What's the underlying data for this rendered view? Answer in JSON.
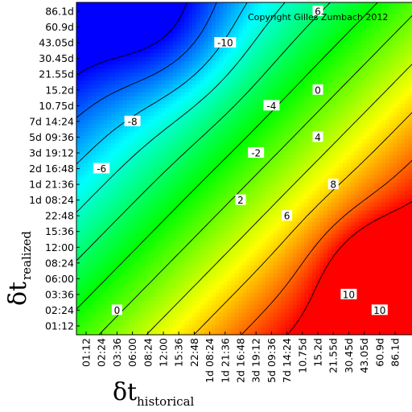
{
  "chart_data": {
    "type": "heatmap",
    "title": "",
    "copyright": "Copyright Gilles Zumbach 2012",
    "xlabel": {
      "symbol": "δt",
      "subscript": "historical"
    },
    "ylabel": {
      "symbol": "δt",
      "subscript": "realized"
    },
    "x_categories": [
      "01:12",
      "02:24",
      "03:36",
      "06:00",
      "08:24",
      "12:00",
      "15:36",
      "22:48",
      "1d 08:24",
      "1d 21:36",
      "2d 16:48",
      "3d 19:12",
      "5d 09:36",
      "7d 14:24",
      "10.75d",
      "15.2d",
      "21.55d",
      "30.45d",
      "43.05d",
      "60.9d",
      "86.1d"
    ],
    "y_categories": [
      "01:12",
      "02:24",
      "03:36",
      "06:00",
      "08:24",
      "12:00",
      "15:36",
      "22:48",
      "1d 08:24",
      "1d 21:36",
      "2d 16:48",
      "3d 19:12",
      "5d 09:36",
      "7d 14:24",
      "10.75d",
      "15.2d",
      "21.55d",
      "30.45d",
      "43.05d",
      "60.9d",
      "86.1d"
    ],
    "contour_levels": [
      -10,
      -8,
      -6,
      -4,
      -2,
      0,
      2,
      4,
      6,
      8,
      10
    ],
    "contour_labels": [
      {
        "text": "-10",
        "x_category": "1d 21:36",
        "y_category": "43.05d"
      },
      {
        "text": "-8",
        "x_category": "06:00",
        "y_category": "7d 14:24"
      },
      {
        "text": "-6",
        "x_category": "02:24",
        "y_category": "2d 16:48"
      },
      {
        "text": "-4",
        "x_category": "5d 09:36",
        "y_category": "10.75d"
      },
      {
        "text": "-2",
        "x_category": "3d 19:12",
        "y_category": "3d 19:12"
      },
      {
        "text": "2",
        "x_category": "2d 16:48",
        "y_category": "1d 08:24"
      },
      {
        "text": "0",
        "x_category": "03:36",
        "y_category": "02:24"
      },
      {
        "text": "0",
        "x_category": "15.2d",
        "y_category": "15.2d"
      },
      {
        "text": "4",
        "x_category": "15.2d",
        "y_category": "5d 09:36"
      },
      {
        "text": "6",
        "x_category": "7d 14:24",
        "y_category": "22:48"
      },
      {
        "text": "8",
        "x_category": "21.55d",
        "y_category": "1d 21:36"
      },
      {
        "text": "10",
        "x_category": "30.45d",
        "y_category": "03:36"
      },
      {
        "text": "10",
        "x_category": "60.9d",
        "y_category": "02:24"
      },
      {
        "text": "6",
        "x_category": "15.2d",
        "y_category": "86.1d"
      }
    ],
    "colormap": [
      "#0000ff",
      "#00ffff",
      "#00ff00",
      "#ffff00",
      "#ff0000"
    ],
    "value_range": [
      -10,
      10
    ],
    "legend": "none",
    "grid": false
  }
}
